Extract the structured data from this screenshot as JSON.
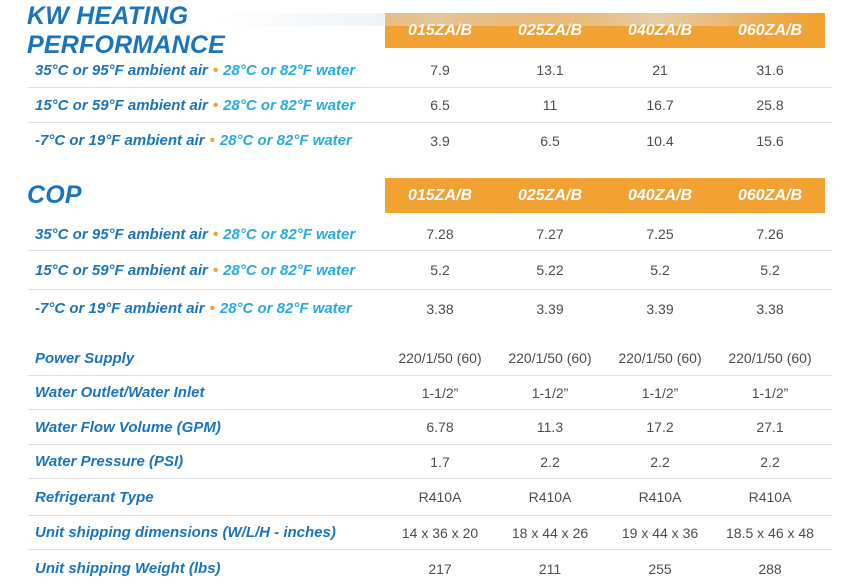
{
  "colors": {
    "accent_orange": "#F2A133",
    "label_blue": "#1B75BC",
    "label_cyan": "#29ABE2",
    "value_gray": "#4D4D4D",
    "divider_gray": "#E0E0E0"
  },
  "columns": [
    "015ZA/B",
    "025ZA/B",
    "040ZA/B",
    "060ZA/B"
  ],
  "sections": [
    {
      "title": "KW HEATING PERFORMANCE",
      "rows": [
        {
          "air": "35°C or 95°F ambient air",
          "sep": "•",
          "water": "28°C or 82°F water",
          "values": [
            "7.9",
            "13.1",
            "21",
            "31.6"
          ]
        },
        {
          "air": "15°C or 59°F ambient air",
          "sep": "•",
          "water": "28°C or 82°F water",
          "values": [
            "6.5",
            "11",
            "16.7",
            "25.8"
          ]
        },
        {
          "air": "-7°C or 19°F ambient air",
          "sep": "•",
          "water": "28°C or 82°F water",
          "values": [
            "3.9",
            "6.5",
            "10.4",
            "15.6"
          ]
        }
      ]
    },
    {
      "title": "COP",
      "rows": [
        {
          "air": "35°C or 95°F ambient air",
          "sep": "•",
          "water": "28°C or 82°F water",
          "values": [
            "7.28",
            "7.27",
            "7.25",
            "7.26"
          ]
        },
        {
          "air": "15°C or 59°F ambient air",
          "sep": "•",
          "water": "28°C or 82°F water",
          "values": [
            "5.2",
            "5.22",
            "5.2",
            "5.2"
          ]
        },
        {
          "air": "-7°C or 19°F ambient air",
          "sep": "•",
          "water": "28°C or 82°F water",
          "values": [
            "3.38",
            "3.39",
            "3.39",
            "3.38"
          ]
        }
      ]
    }
  ],
  "specs": [
    {
      "label": "Power Supply",
      "values": [
        "220/1/50 (60)",
        "220/1/50 (60)",
        "220/1/50 (60)",
        "220/1/50 (60)"
      ]
    },
    {
      "label": "Water Outlet/Water Inlet",
      "values": [
        "1-1/2”",
        "1-1/2”",
        "1-1/2”",
        "1-1/2”"
      ]
    },
    {
      "label": "Water Flow Volume (GPM)",
      "values": [
        "6.78",
        "11.3",
        "17.2",
        "27.1"
      ]
    },
    {
      "label": "Water Pressure (PSI)",
      "values": [
        "1.7",
        "2.2",
        "2.2",
        "2.2"
      ]
    },
    {
      "label": "Refrigerant Type",
      "values": [
        "R410A",
        "R410A",
        "R410A",
        "R410A"
      ]
    },
    {
      "label": "Unit shipping dimensions (W/L/H - inches)",
      "values": [
        "14 x 36 x 20",
        "18 x 44 x 26",
        "19 x 44 x 36",
        "18.5 x 46 x 48"
      ]
    },
    {
      "label": "Unit shipping Weight (lbs)",
      "values": [
        "217",
        "211",
        "255",
        "288"
      ]
    }
  ]
}
